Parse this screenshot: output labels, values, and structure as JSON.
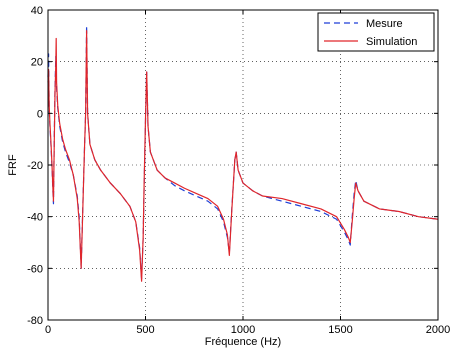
{
  "chart_data": {
    "type": "line",
    "xlabel": "Fréquence (Hz)",
    "ylabel": "FRF",
    "xlim": [
      0,
      2000
    ],
    "ylim": [
      -80,
      40
    ],
    "xticks": [
      0,
      500,
      1000,
      1500,
      2000
    ],
    "yticks": [
      -80,
      -60,
      -40,
      -20,
      0,
      20,
      40
    ],
    "grid": true,
    "legend_position": "top-right",
    "series": [
      {
        "name": "Mesure",
        "color": "#1f3fd6",
        "style": "dashed",
        "points": [
          [
            0,
            14
          ],
          [
            3,
            23
          ],
          [
            6,
            2
          ],
          [
            10,
            -5
          ],
          [
            15,
            -12
          ],
          [
            20,
            -20
          ],
          [
            25,
            -30
          ],
          [
            28,
            -35
          ],
          [
            32,
            -10
          ],
          [
            36,
            10
          ],
          [
            40,
            22
          ],
          [
            44,
            10
          ],
          [
            50,
            2
          ],
          [
            60,
            -5
          ],
          [
            75,
            -11
          ],
          [
            90,
            -15
          ],
          [
            110,
            -19
          ],
          [
            130,
            -24
          ],
          [
            150,
            -32
          ],
          [
            160,
            -40
          ],
          [
            170,
            -60
          ],
          [
            180,
            -32
          ],
          [
            187,
            -14
          ],
          [
            193,
            0
          ],
          [
            198,
            34
          ],
          [
            203,
            0
          ],
          [
            215,
            -12
          ],
          [
            240,
            -18
          ],
          [
            270,
            -22
          ],
          [
            320,
            -27
          ],
          [
            370,
            -31
          ],
          [
            420,
            -36
          ],
          [
            450,
            -42
          ],
          [
            470,
            -52
          ],
          [
            480,
            -64
          ],
          [
            488,
            -48
          ],
          [
            493,
            -28
          ],
          [
            500,
            -3
          ],
          [
            506,
            16
          ],
          [
            513,
            -5
          ],
          [
            525,
            -15
          ],
          [
            560,
            -22
          ],
          [
            600,
            -25
          ],
          [
            650,
            -28
          ],
          [
            700,
            -30
          ],
          [
            760,
            -32
          ],
          [
            820,
            -34
          ],
          [
            870,
            -37
          ],
          [
            900,
            -42
          ],
          [
            920,
            -48
          ],
          [
            930,
            -54
          ],
          [
            940,
            -40
          ],
          [
            950,
            -28
          ],
          [
            958,
            -18
          ],
          [
            965,
            -15
          ],
          [
            975,
            -22
          ],
          [
            1000,
            -27
          ],
          [
            1050,
            -30
          ],
          [
            1100,
            -32
          ],
          [
            1200,
            -34
          ],
          [
            1300,
            -36
          ],
          [
            1400,
            -38
          ],
          [
            1480,
            -41
          ],
          [
            1520,
            -46
          ],
          [
            1540,
            -49
          ],
          [
            1550,
            -51
          ],
          [
            1560,
            -40
          ],
          [
            1570,
            -31
          ],
          [
            1578,
            -26
          ],
          [
            1590,
            -30
          ],
          [
            1620,
            -34
          ],
          [
            1700,
            -37
          ],
          [
            1800,
            -38
          ],
          [
            1900,
            -40
          ],
          [
            2000,
            -41
          ]
        ]
      },
      {
        "name": "Simulation",
        "color": "#e0262b",
        "style": "solid",
        "points": [
          [
            0,
            12
          ],
          [
            3,
            17
          ],
          [
            6,
            3
          ],
          [
            10,
            -4
          ],
          [
            15,
            -11
          ],
          [
            20,
            -19
          ],
          [
            25,
            -29
          ],
          [
            28,
            -34
          ],
          [
            32,
            -12
          ],
          [
            36,
            8
          ],
          [
            40,
            19
          ],
          [
            42,
            29
          ],
          [
            44,
            12
          ],
          [
            50,
            3
          ],
          [
            60,
            -4
          ],
          [
            75,
            -10
          ],
          [
            90,
            -14
          ],
          [
            110,
            -18
          ],
          [
            130,
            -24
          ],
          [
            150,
            -33
          ],
          [
            160,
            -42
          ],
          [
            170,
            -60
          ],
          [
            180,
            -33
          ],
          [
            187,
            -14
          ],
          [
            193,
            0
          ],
          [
            198,
            32
          ],
          [
            203,
            0
          ],
          [
            215,
            -12
          ],
          [
            240,
            -18
          ],
          [
            270,
            -22
          ],
          [
            320,
            -27
          ],
          [
            370,
            -31
          ],
          [
            420,
            -36
          ],
          [
            450,
            -42
          ],
          [
            470,
            -53
          ],
          [
            480,
            -65
          ],
          [
            488,
            -48
          ],
          [
            493,
            -27
          ],
          [
            500,
            -2
          ],
          [
            506,
            16
          ],
          [
            513,
            -5
          ],
          [
            525,
            -15
          ],
          [
            560,
            -22
          ],
          [
            600,
            -25
          ],
          [
            650,
            -27
          ],
          [
            700,
            -29
          ],
          [
            760,
            -31
          ],
          [
            820,
            -33
          ],
          [
            870,
            -36
          ],
          [
            900,
            -41
          ],
          [
            920,
            -47
          ],
          [
            930,
            -55
          ],
          [
            940,
            -41
          ],
          [
            950,
            -28
          ],
          [
            958,
            -18
          ],
          [
            965,
            -15
          ],
          [
            975,
            -22
          ],
          [
            1000,
            -27
          ],
          [
            1050,
            -30
          ],
          [
            1100,
            -32
          ],
          [
            1200,
            -33
          ],
          [
            1300,
            -35
          ],
          [
            1400,
            -37
          ],
          [
            1480,
            -40
          ],
          [
            1520,
            -45
          ],
          [
            1540,
            -48
          ],
          [
            1550,
            -50
          ],
          [
            1560,
            -42
          ],
          [
            1570,
            -33
          ],
          [
            1578,
            -27
          ],
          [
            1590,
            -30
          ],
          [
            1620,
            -34
          ],
          [
            1700,
            -37
          ],
          [
            1800,
            -38
          ],
          [
            1900,
            -40
          ],
          [
            2000,
            -41
          ]
        ]
      }
    ]
  }
}
